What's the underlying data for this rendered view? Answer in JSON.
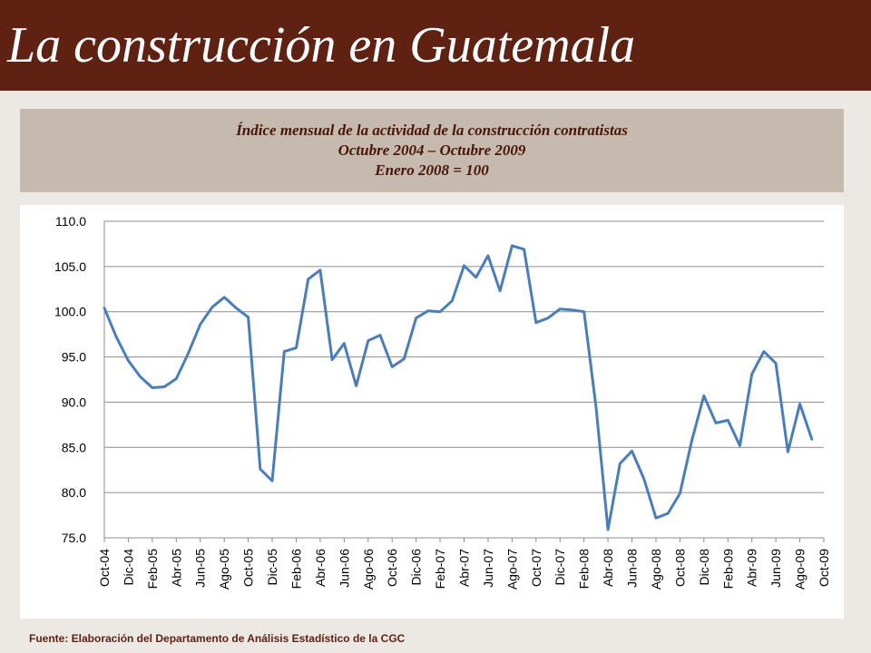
{
  "header": {
    "title": "La construcción en Guatemala"
  },
  "subtitle": {
    "line1": "Índice mensual de la actividad de la construcción contratistas",
    "line2": "Octubre 2004 – Octubre 2009",
    "line3": "Enero 2008 = 100"
  },
  "source": "Fuente:  Elaboración del Departamento de Análisis Estadístico de la CGC",
  "colors": {
    "header": "#5e2112",
    "series": "#4a7ebb",
    "grid": "#8c8c8c"
  },
  "chart_data": {
    "type": "line",
    "ylim": [
      75.0,
      110.0
    ],
    "yticks": [
      "75.0",
      "80.0",
      "85.0",
      "90.0",
      "95.0",
      "100.0",
      "105.0",
      "110.0"
    ],
    "xticks": [
      "Oct-04",
      "Dic-04",
      "Feb-05",
      "Abr-05",
      "Jun-05",
      "Ago-05",
      "Oct-05",
      "Dic-05",
      "Feb-06",
      "Abr-06",
      "Jun-06",
      "Ago-06",
      "Oct-06",
      "Dic-06",
      "Feb-07",
      "Abr-07",
      "Jun-07",
      "Ago-07",
      "Oct-07",
      "Dic-07",
      "Feb-08",
      "Abr-08",
      "Jun-08",
      "Ago-08",
      "Oct-08",
      "Dic-08",
      "Feb-09",
      "Abr-09",
      "Jun-09",
      "Ago-09",
      "Oct-09"
    ],
    "grid": true,
    "legend": "none",
    "series": [
      {
        "values": [
          100.4,
          97.2,
          94.6,
          92.8,
          91.6,
          91.7,
          92.6,
          95.4,
          98.6,
          100.5,
          101.6,
          100.4,
          99.4,
          82.6,
          81.3,
          95.6,
          96.0,
          103.6,
          104.6,
          94.7,
          96.5,
          91.8,
          96.8,
          97.4,
          93.9,
          94.8,
          99.3,
          100.1,
          100.0,
          101.2,
          105.1,
          103.8,
          106.2,
          102.3,
          107.3,
          106.9,
          98.8,
          99.3,
          100.3,
          100.2,
          100.0,
          89.5,
          75.9,
          83.2,
          84.6,
          81.5,
          77.2,
          77.7,
          79.9,
          85.8,
          90.7,
          87.7,
          88.0,
          85.2,
          93.1,
          95.6,
          94.3,
          84.5,
          89.8,
          85.9
        ]
      }
    ]
  }
}
